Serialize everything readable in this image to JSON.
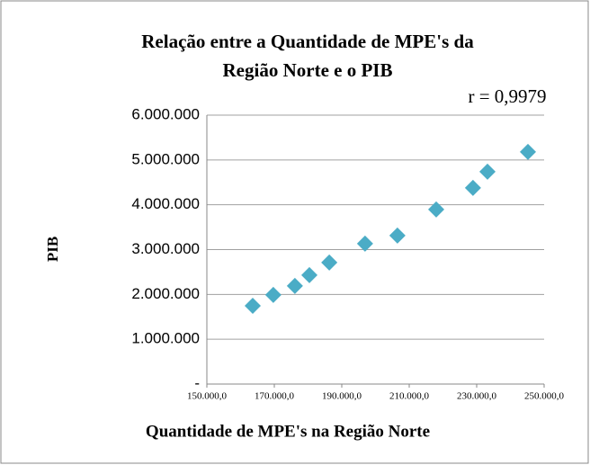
{
  "chart_data": {
    "type": "scatter",
    "title": [
      "Relação entre a Quantidade de MPE's  da",
      "Região Norte e o PIB"
    ],
    "annotation": "r = 0,9979",
    "x_label": "Quantidade  de MPE's  na  Região Norte",
    "y_label": "PIB",
    "x": [
      163600,
      169700,
      176100,
      180400,
      186300,
      196900,
      206500,
      218000,
      228900,
      233200,
      245200
    ],
    "series": [
      {
        "name": "PIB",
        "color": "#4bacc6",
        "values": [
          1747000,
          1988000,
          2189000,
          2430000,
          2711000,
          3133000,
          3313000,
          3896000,
          4378000,
          4739000,
          5181000
        ]
      }
    ],
    "xlim": [
      150000,
      250000
    ],
    "xticks": [
      {
        "value": 150000,
        "label": "150.000,0"
      },
      {
        "value": 170000,
        "label": "170.000,0"
      },
      {
        "value": 190000,
        "label": "190.000,0"
      },
      {
        "value": 210000,
        "label": "210.000,0"
      },
      {
        "value": 230000,
        "label": "230.000,0"
      },
      {
        "value": 250000,
        "label": "250.000,0"
      }
    ],
    "ylim": [
      0,
      6000000
    ],
    "yticks": [
      {
        "value": 0,
        "label": "-"
      },
      {
        "value": 1000000,
        "label": "1.000.000"
      },
      {
        "value": 2000000,
        "label": "2.000.000"
      },
      {
        "value": 3000000,
        "label": "3.000.000"
      },
      {
        "value": 4000000,
        "label": "4.000.000"
      },
      {
        "value": 5000000,
        "label": "5.000.000"
      },
      {
        "value": 6000000,
        "label": "6.000.000"
      }
    ],
    "grid": true
  }
}
